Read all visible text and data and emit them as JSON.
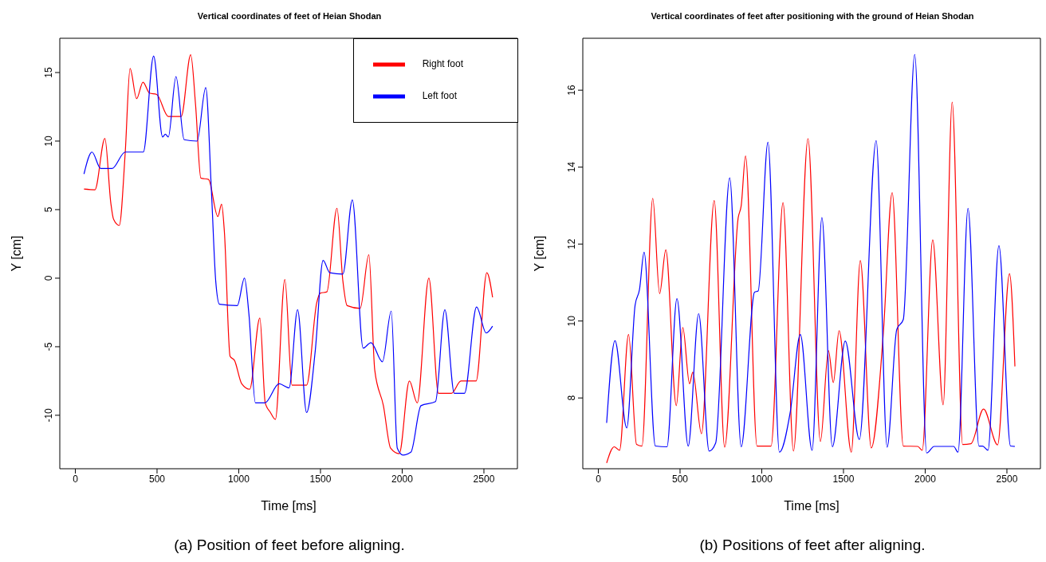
{
  "chart_data": [
    {
      "type": "line",
      "title": "Vertical coordinates of feet of Heian Shodan",
      "xlabel": "Time [ms]",
      "ylabel": "Y [cm]",
      "annotations": [
        "(a) Position of feet before aligning."
      ],
      "xlim": [
        -95,
        2705
      ],
      "ylim": [
        -13.9,
        17.5
      ],
      "xticks": [
        0,
        500,
        1000,
        1500,
        2000,
        2500
      ],
      "yticks": [
        -10,
        -5,
        0,
        5,
        10,
        15
      ],
      "legend": "top right",
      "series": [
        {
          "name": "Right foot",
          "color": "#ff0000",
          "x": [
            53,
            120,
            181,
            217,
            234,
            269,
            305,
            335,
            375,
            414,
            454,
            498,
            569,
            648,
            706,
            736,
            768,
            815,
            872,
            895,
            912,
            947,
            974,
            1018,
            1067,
            1129,
            1162,
            1194,
            1224,
            1282,
            1326,
            1415,
            1477,
            1498,
            1539,
            1601,
            1637,
            1663,
            1743,
            1796,
            1832,
            1885,
            1929,
            1982,
            2044,
            2092,
            2163,
            2222,
            2301,
            2360,
            2452,
            2518,
            2553
          ],
          "values": [
            6.5,
            6.45,
            10.2,
            5.5,
            4.3,
            3.85,
            9.1,
            15.3,
            13.1,
            14.3,
            13.5,
            13.4,
            11.8,
            11.8,
            16.3,
            12.6,
            7.3,
            7.2,
            4.5,
            5.4,
            3.4,
            -5.7,
            -6.0,
            -7.7,
            -8.1,
            -2.9,
            -9.1,
            -9.8,
            -10.3,
            -0.1,
            -7.8,
            -7.8,
            -1.8,
            -1.1,
            -1.0,
            5.1,
            -0.2,
            -2.0,
            -2.2,
            1.7,
            -6.7,
            -9.3,
            -12.4,
            -12.8,
            -7.5,
            -9.1,
            0.0,
            -8.4,
            -8.4,
            -7.5,
            -7.5,
            0.4,
            -1.4
          ]
        },
        {
          "name": "Left foot",
          "color": "#0000ff",
          "x": [
            53,
            102,
            155,
            225,
            305,
            416,
            479,
            534,
            551,
            569,
            616,
            666,
            745,
            798,
            833,
            859,
            882,
            991,
            1035,
            1062,
            1102,
            1159,
            1247,
            1308,
            1360,
            1415,
            1468,
            1516,
            1557,
            1637,
            1695,
            1761,
            1809,
            1879,
            1933,
            1970,
            2005,
            2053,
            2115,
            2204,
            2261,
            2319,
            2381,
            2455,
            2514,
            2553
          ],
          "values": [
            7.6,
            9.2,
            8.0,
            8.0,
            9.2,
            9.2,
            16.2,
            10.3,
            10.5,
            10.3,
            14.7,
            10.1,
            10.0,
            13.9,
            6.3,
            -0.2,
            -1.9,
            -2.0,
            0.0,
            -2.6,
            -9.1,
            -9.1,
            -7.7,
            -8.0,
            -2.3,
            -9.8,
            -5.3,
            1.3,
            0.4,
            0.3,
            5.7,
            -5.1,
            -4.7,
            -6.1,
            -2.4,
            -12.4,
            -12.9,
            -12.7,
            -9.3,
            -9.0,
            -2.3,
            -8.4,
            -8.4,
            -2.1,
            -4.0,
            -3.5
          ]
        }
      ]
    },
    {
      "type": "line",
      "title": "Vertical coordinates of feet after positioning with the ground of Heian Shodan",
      "xlabel": "Time [ms]",
      "ylabel": "Y [cm]",
      "annotations": [
        "(b) Positions of feet after aligning."
      ],
      "xlim": [
        -95,
        2705
      ],
      "ylim": [
        6.16,
        17.35
      ],
      "xticks": [
        0,
        500,
        1000,
        1500,
        2000,
        2500
      ],
      "yticks": [
        8,
        10,
        12,
        14,
        16
      ],
      "series": [
        {
          "color": "#ff0000",
          "x": [
            51,
            97,
            130,
            185,
            234,
            267,
            333,
            375,
            413,
            477,
            517,
            558,
            578,
            631,
            709,
            773,
            856,
            874,
            901,
            971,
            1057,
            1130,
            1194,
            1283,
            1359,
            1408,
            1438,
            1473,
            1548,
            1603,
            1670,
            1744,
            1798,
            1866,
            1954,
            1982,
            2046,
            2110,
            2165,
            2229,
            2280,
            2357,
            2443,
            2516,
            2549
          ],
          "values": [
            6.31,
            6.73,
            6.64,
            9.65,
            6.79,
            6.75,
            13.19,
            10.71,
            11.85,
            7.8,
            9.83,
            8.37,
            8.67,
            7.07,
            13.13,
            6.72,
            12.69,
            12.99,
            14.29,
            6.75,
            6.75,
            13.08,
            6.62,
            14.74,
            6.87,
            9.23,
            8.4,
            9.75,
            6.59,
            11.57,
            6.7,
            9.7,
            13.34,
            6.75,
            6.74,
            6.64,
            12.11,
            7.82,
            15.69,
            6.79,
            6.81,
            7.71,
            6.78,
            11.23,
            8.82
          ]
        },
        {
          "color": "#0000ff",
          "x": [
            51,
            102,
            174,
            225,
            252,
            280,
            349,
            420,
            481,
            550,
            614,
            678,
            718,
            804,
            874,
            956,
            978,
            1038,
            1108,
            1175,
            1236,
            1308,
            1368,
            1432,
            1511,
            1597,
            1700,
            1767,
            1826,
            1866,
            1936,
            2009,
            2055,
            2174,
            2201,
            2262,
            2329,
            2351,
            2384,
            2451,
            2522,
            2549
          ],
          "values": [
            7.35,
            9.49,
            7.22,
            10.41,
            10.82,
            11.79,
            6.75,
            6.73,
            10.58,
            6.75,
            10.19,
            6.62,
            6.83,
            13.72,
            6.73,
            10.75,
            10.78,
            14.65,
            6.59,
            7.65,
            9.65,
            6.64,
            12.69,
            6.73,
            9.48,
            6.92,
            14.69,
            6.72,
            9.78,
            10.04,
            16.93,
            6.57,
            6.74,
            6.74,
            6.59,
            12.93,
            6.75,
            6.75,
            6.64,
            11.96,
            6.75,
            6.74
          ]
        }
      ]
    }
  ]
}
